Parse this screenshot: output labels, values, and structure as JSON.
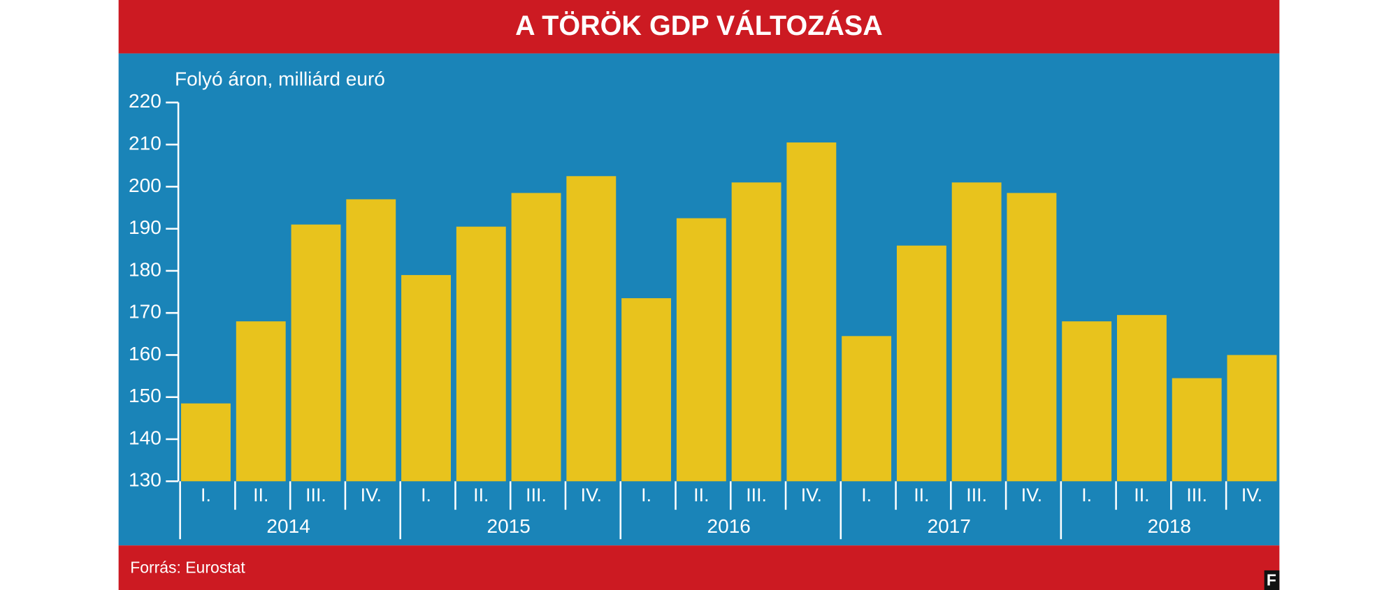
{
  "chart_data": {
    "type": "bar",
    "title": "A TÖRÖK GDP VÁLTOZÁSA",
    "subtitle": "Folyó áron, milliárd euró",
    "source": "Forrás: Eurostat",
    "logo": "F",
    "categories": [
      "I.",
      "II.",
      "III.",
      "IV.",
      "I.",
      "II.",
      "III.",
      "IV.",
      "I.",
      "II.",
      "III.",
      "IV.",
      "I.",
      "II.",
      "III.",
      "IV.",
      "I.",
      "II.",
      "III.",
      "IV."
    ],
    "years": [
      "2014",
      "2015",
      "2016",
      "2017",
      "2018"
    ],
    "values": [
      148.5,
      168,
      191,
      197,
      179,
      190.5,
      198.5,
      202.5,
      173.5,
      192.5,
      201,
      210.5,
      164.5,
      186,
      201,
      198.5,
      168,
      169.5,
      154.5,
      160
    ],
    "color": "#e8c31d",
    "ylim": [
      130,
      220
    ],
    "yticks": [
      130,
      140,
      150,
      160,
      170,
      180,
      190,
      200,
      210,
      220
    ],
    "grid": false
  }
}
